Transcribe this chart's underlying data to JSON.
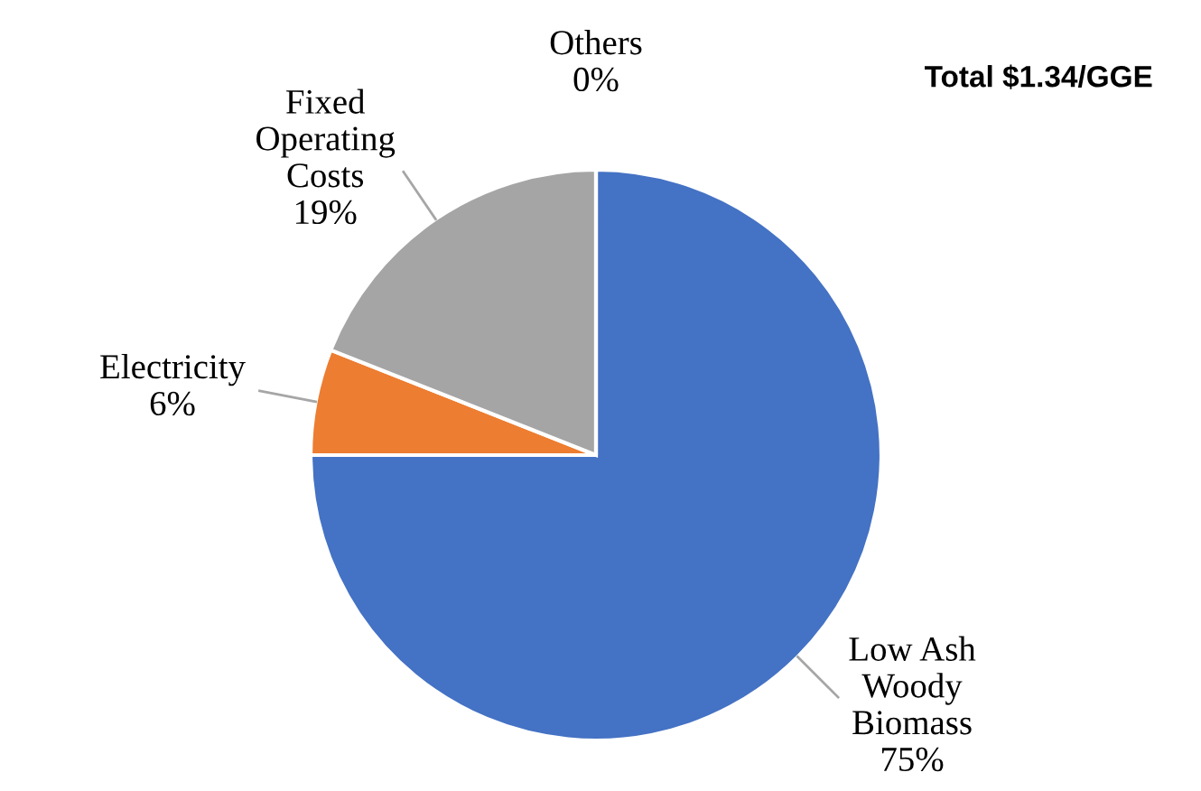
{
  "chart_data": {
    "type": "pie",
    "title": "Total $1.34/GGE",
    "categories": [
      "Low Ash Woody Biomass",
      "Electricity",
      "Fixed Operating Costs",
      "Others"
    ],
    "values": [
      75,
      6,
      19,
      0
    ],
    "colors": [
      "#4472c4",
      "#ed7d31",
      "#a5a5a5",
      "#ffc000"
    ],
    "value_labels": [
      "75%",
      "6%",
      "19%",
      "0%"
    ],
    "legend": false
  }
}
